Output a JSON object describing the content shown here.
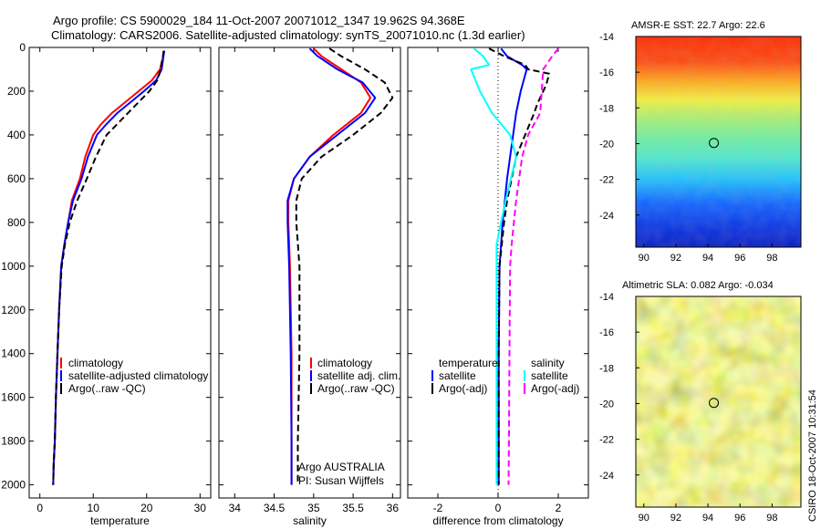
{
  "figure": {
    "title_line1": "Argo profile: CS 5900029_184 11-Oct-2007 20071012_1347 19.962S 94.368E",
    "title_line2": "Climatology: CARS2006. Satellite-adjusted climatology: synTS_20071010.nc (1.3d earlier)",
    "credit": "CSIRO 18-Oct-2007 10:31:54",
    "annotation_line1": "Argo AUSTRALIA",
    "annotation_line2": "PI: Susan Wijffels"
  },
  "colors": {
    "climatology": "#ff0000",
    "satellite": "#0000ff",
    "argo": "#000000",
    "sal_satellite": "#00ffff",
    "sal_argo": "#ff00ff"
  },
  "chart_data": [
    {
      "id": "temperature",
      "type": "line",
      "xlabel": "temperature",
      "ylabel": "",
      "xlim": [
        -2,
        32
      ],
      "ylim": [
        2060,
        0
      ],
      "xticks": [
        0,
        10,
        20,
        30
      ],
      "yticks": [
        0,
        200,
        400,
        600,
        800,
        1000,
        1200,
        1400,
        1600,
        1800,
        2000
      ],
      "legend": [
        "climatology",
        "satellite-adjusted climatology",
        "Argo(..raw -QC)"
      ],
      "series": [
        {
          "name": "climatology",
          "style": "solid",
          "x": [
            23.2,
            23.0,
            22.5,
            21.0,
            18.5,
            16.0,
            13.5,
            11.5,
            10.0,
            8.5,
            7.5,
            6.0,
            5.3,
            4.6,
            4.0,
            3.6,
            3.3,
            3.0,
            2.8,
            2.6,
            2.5
          ],
          "y": [
            15,
            50,
            100,
            150,
            200,
            250,
            300,
            350,
            400,
            500,
            600,
            700,
            800,
            900,
            1000,
            1200,
            1400,
            1600,
            1800,
            1900,
            2000
          ]
        },
        {
          "name": "satellite-adjusted climatology",
          "style": "solid",
          "x": [
            23.3,
            23.1,
            22.8,
            21.8,
            19.5,
            17.0,
            14.5,
            12.5,
            10.7,
            9.0,
            7.8,
            6.2,
            5.3,
            4.6,
            4.0,
            3.6,
            3.3,
            3.0,
            2.8,
            2.6,
            2.5
          ],
          "y": [
            15,
            50,
            100,
            150,
            200,
            250,
            300,
            350,
            400,
            500,
            600,
            700,
            800,
            900,
            1000,
            1200,
            1400,
            1600,
            1800,
            1900,
            2000
          ]
        },
        {
          "name": "Argo(..raw -QC)",
          "style": "dashed",
          "x": [
            23.2,
            23.0,
            22.6,
            22.0,
            20.5,
            18.5,
            16.5,
            14.5,
            12.5,
            10.5,
            8.8,
            7.0,
            5.6,
            4.7,
            4.1,
            3.6,
            3.3,
            3.0,
            2.8,
            2.6,
            2.5
          ],
          "y": [
            15,
            50,
            100,
            150,
            200,
            250,
            300,
            350,
            400,
            500,
            600,
            700,
            800,
            900,
            1000,
            1200,
            1400,
            1600,
            1800,
            1900,
            2000
          ]
        }
      ]
    },
    {
      "id": "salinity",
      "type": "line",
      "xlabel": "salinity",
      "ylabel": "",
      "xlim": [
        33.8,
        36.1
      ],
      "ylim": [
        2060,
        0
      ],
      "xticks": [
        34,
        34.5,
        35,
        35.5,
        36
      ],
      "legend": [
        "climatology",
        "satellite adj. clim.",
        "Argo(..raw -QC)"
      ],
      "series": [
        {
          "name": "climatology",
          "style": "solid",
          "x": [
            35.0,
            35.1,
            35.35,
            35.6,
            35.72,
            35.6,
            35.25,
            34.95,
            34.75,
            34.68,
            34.68,
            34.7,
            34.72,
            34.72,
            34.72
          ],
          "y": [
            5,
            40,
            100,
            160,
            230,
            300,
            400,
            500,
            600,
            700,
            800,
            1000,
            1400,
            1800,
            2000
          ]
        },
        {
          "name": "satellite adj. clim.",
          "style": "solid",
          "x": [
            34.95,
            35.05,
            35.3,
            35.62,
            35.78,
            35.65,
            35.3,
            34.95,
            34.75,
            34.67,
            34.67,
            34.69,
            34.71,
            34.72,
            34.72
          ],
          "y": [
            5,
            40,
            100,
            160,
            230,
            300,
            400,
            500,
            600,
            700,
            800,
            1000,
            1400,
            1800,
            2000
          ]
        },
        {
          "name": "Argo(..raw -QC)",
          "style": "dashed",
          "x": [
            35.2,
            35.35,
            35.65,
            35.9,
            36.0,
            35.85,
            35.5,
            35.1,
            34.85,
            34.78,
            34.78,
            34.82,
            34.82,
            34.8,
            34.8
          ],
          "y": [
            5,
            40,
            100,
            160,
            230,
            300,
            400,
            500,
            600,
            700,
            800,
            1000,
            1400,
            1800,
            2000
          ]
        }
      ]
    },
    {
      "id": "difference",
      "type": "line",
      "xlabel": "difference from climatology",
      "ylabel": "",
      "xlim": [
        -3,
        3
      ],
      "ylim": [
        2060,
        0
      ],
      "xticks": [
        -2,
        0,
        2
      ],
      "legend_left_title": "temperature",
      "legend_right_title": "salinity",
      "legend": [
        "satellite",
        "Argo(-adj)",
        "satellite",
        "Argo(-adj)"
      ],
      "series": [
        {
          "name": "satellite",
          "group": "temperature",
          "style": "solid",
          "x": [
            0.1,
            0.3,
            0.8,
            0.95,
            0.75,
            0.6,
            0.5,
            0.4,
            0.3,
            0.15,
            0.05,
            0.02,
            0.02,
            0.02
          ],
          "y": [
            5,
            40,
            80,
            100,
            200,
            300,
            400,
            500,
            600,
            800,
            1000,
            1400,
            1800,
            2000
          ]
        },
        {
          "name": "Argo(-adj)",
          "group": "temperature",
          "style": "dashed",
          "x": [
            -0.3,
            0.2,
            0.9,
            1.0,
            1.7,
            1.6,
            1.3,
            1.2,
            0.9,
            0.6,
            0.45,
            0.3,
            0.2,
            0.05,
            0.02,
            0.02
          ],
          "y": [
            5,
            40,
            80,
            100,
            120,
            170,
            260,
            300,
            400,
            500,
            600,
            700,
            800,
            1000,
            1400,
            2000
          ]
        },
        {
          "name": "satellite",
          "group": "salinity",
          "style": "solid",
          "x": [
            -0.8,
            -0.5,
            -0.3,
            -0.9,
            -0.6,
            -0.2,
            0.4,
            0.6,
            0.25,
            0.1,
            -0.05,
            -0.05,
            -0.05,
            -0.05
          ],
          "y": [
            5,
            40,
            80,
            100,
            200,
            300,
            400,
            500,
            700,
            800,
            900,
            1000,
            1400,
            2000
          ]
        },
        {
          "name": "Argo(-adj)",
          "group": "salinity",
          "style": "dashed",
          "x": [
            2.0,
            1.8,
            1.5,
            1.4,
            1.0,
            0.8,
            0.6,
            0.45,
            0.4,
            0.38,
            0.36,
            0.35
          ],
          "y": [
            5,
            40,
            100,
            300,
            400,
            500,
            700,
            900,
            1000,
            1400,
            1800,
            2000
          ]
        }
      ]
    },
    {
      "id": "sst_map",
      "type": "heatmap",
      "title": "AMSR-E SST: 22.7 Argo: 22.6",
      "xlim": [
        89.5,
        99.8
      ],
      "ylim": [
        -25.8,
        -14
      ],
      "xticks": [
        90,
        92,
        94,
        96,
        98
      ],
      "yticks": [
        -14,
        -16,
        -18,
        -20,
        -22,
        -24
      ],
      "marker": {
        "lon": 94.368,
        "lat": -19.962
      }
    },
    {
      "id": "sla_map",
      "type": "heatmap",
      "title": "Altimetric SLA: 0.082 Argo: -0.034",
      "xlim": [
        89.5,
        99.8
      ],
      "ylim": [
        -25.8,
        -14
      ],
      "xticks": [
        90,
        92,
        94,
        96,
        98
      ],
      "yticks": [
        -14,
        -16,
        -18,
        -20,
        -22,
        -24
      ],
      "marker": {
        "lon": 94.368,
        "lat": -19.962
      }
    }
  ]
}
